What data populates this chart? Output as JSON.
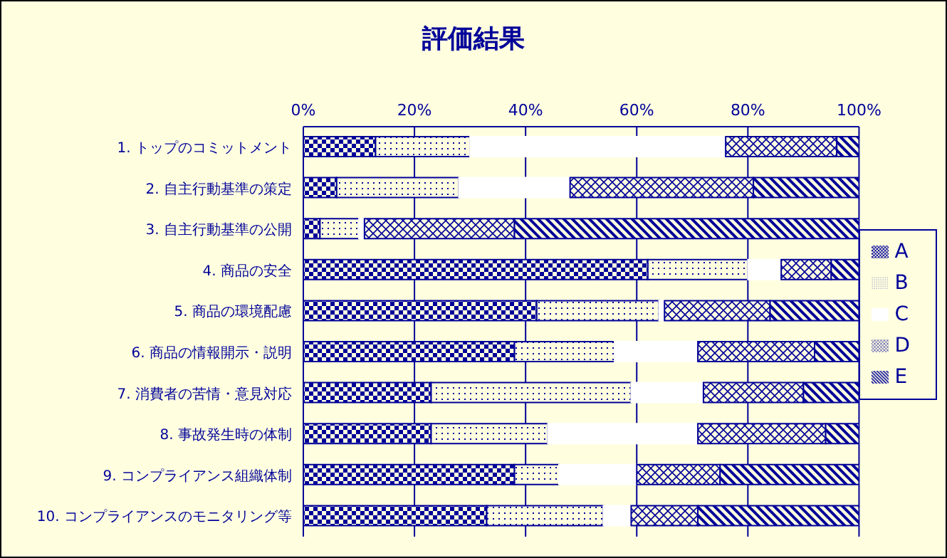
{
  "chart_data": {
    "type": "bar",
    "orientation": "horizontal",
    "stacked": true,
    "title": "評価結果",
    "categories": [
      "1. トップのコミットメント",
      "2. 自主行動基準の策定",
      "3. 自主行動基準の公開",
      "4. 商品の安全",
      "5. 商品の環境配慮",
      "6. 商品の情報開示・説明",
      "7. 消費者の苦情・意見対応",
      "8. 事故発生時の体制",
      "9. コンプライアンス組織体制",
      "10. コンプライアンスのモニタリング等"
    ],
    "series": [
      {
        "name": "A",
        "color": "#000099",
        "values": [
          13,
          6,
          3,
          62,
          42,
          38,
          23,
          23,
          38,
          33
        ]
      },
      {
        "name": "B",
        "color": "#000099",
        "values": [
          17,
          22,
          7,
          18,
          22,
          18,
          36,
          21,
          8,
          21
        ]
      },
      {
        "name": "C",
        "color": "#ffffff",
        "values": [
          46,
          20,
          1,
          6,
          1,
          15,
          13,
          27,
          14,
          5
        ]
      },
      {
        "name": "D",
        "color": "#000099",
        "values": [
          20,
          33,
          27,
          9,
          19,
          21,
          18,
          23,
          15,
          12
        ]
      },
      {
        "name": "E",
        "color": "#000099",
        "values": [
          4,
          19,
          62,
          5,
          16,
          8,
          10,
          6,
          25,
          29
        ]
      }
    ],
    "xlim": [
      0,
      100
    ],
    "xticks": [
      {
        "value": 0,
        "label": "0%"
      },
      {
        "value": 20,
        "label": "20%"
      },
      {
        "value": 40,
        "label": "40%"
      },
      {
        "value": 60,
        "label": "60%"
      },
      {
        "value": 80,
        "label": "80%"
      },
      {
        "value": 100,
        "label": "100%"
      }
    ],
    "grid": "x",
    "legend": "right"
  }
}
